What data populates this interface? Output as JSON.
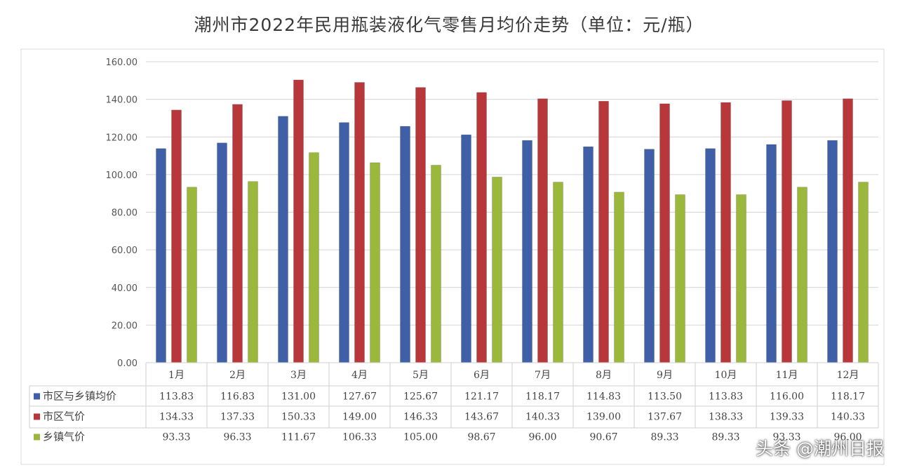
{
  "chart_data": {
    "type": "bar",
    "title": "潮州市2022年民用瓶装液化气零售月均价走势（单位：元/瓶）",
    "categories": [
      "1月",
      "2月",
      "3月",
      "4月",
      "5月",
      "6月",
      "7月",
      "8月",
      "9月",
      "10月",
      "11月",
      "12月"
    ],
    "series": [
      {
        "name": "市区与乡镇均价",
        "color": "#3f5fa6",
        "values": [
          113.83,
          116.83,
          131.0,
          127.67,
          125.67,
          121.17,
          118.17,
          114.83,
          113.5,
          113.83,
          116.0,
          118.17
        ],
        "labels": [
          "113.83",
          "116.83",
          "131.00",
          "127.67",
          "125.67",
          "121.17",
          "118.17",
          "114.83",
          "113.50",
          "113.83",
          "116.00",
          "118.17"
        ]
      },
      {
        "name": "市区气价",
        "color": "#b8373a",
        "values": [
          134.33,
          137.33,
          150.33,
          149.0,
          146.33,
          143.67,
          140.33,
          139.0,
          137.67,
          138.33,
          139.33,
          140.33
        ],
        "labels": [
          "134.33",
          "137.33",
          "150.33",
          "149.00",
          "146.33",
          "143.67",
          "140.33",
          "139.00",
          "137.67",
          "138.33",
          "139.33",
          "140.33"
        ]
      },
      {
        "name": "乡镇气价",
        "color": "#9bb83c",
        "values": [
          93.33,
          96.33,
          111.67,
          106.33,
          105.0,
          98.67,
          96.0,
          90.67,
          89.33,
          89.33,
          93.33,
          96.0
        ],
        "labels": [
          "93.33",
          "96.33",
          "111.67",
          "106.33",
          "105.00",
          "98.67",
          "96.00",
          "90.67",
          "89.33",
          "89.33",
          "93.33",
          "96.00"
        ]
      }
    ],
    "yticks": [
      "0.00",
      "20.00",
      "40.00",
      "60.00",
      "80.00",
      "100.00",
      "120.00",
      "140.00",
      "160.00"
    ],
    "ylim": [
      0,
      160
    ],
    "grid": true,
    "legend": "data-table-below"
  },
  "watermark": "头条 @潮州日报"
}
